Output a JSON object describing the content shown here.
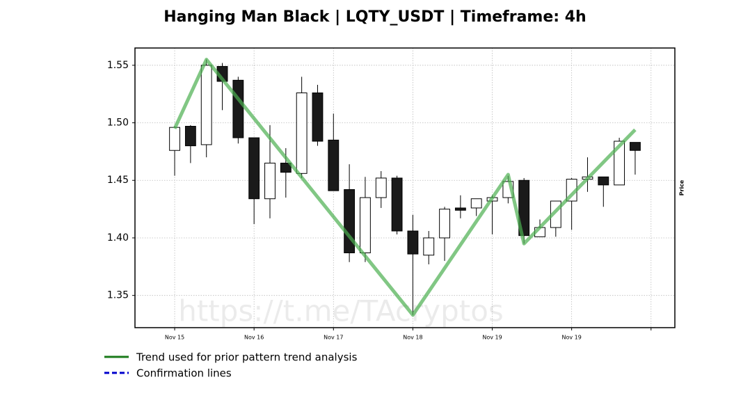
{
  "chart_data": {
    "type": "candlestick",
    "title": "Hanging Man Black | LQTY_USDT | Timeframe: 4h",
    "ylabel": "Price",
    "watermark": "https://t.me/TAcryptos",
    "up_color": "#ffffff",
    "down_color": "#1a1a1a",
    "open": [
      1.476,
      1.497,
      1.481,
      1.549,
      1.537,
      1.487,
      1.434,
      1.465,
      1.456,
      1.526,
      1.485,
      1.442,
      1.387,
      1.435,
      1.452,
      1.406,
      1.385,
      1.4,
      1.426,
      1.426,
      1.432,
      1.435,
      1.45,
      1.401,
      1.409,
      1.432,
      1.451,
      1.453,
      1.446,
      1.483
    ],
    "high": [
      1.497,
      1.498,
      1.555,
      1.552,
      1.54,
      1.487,
      1.498,
      1.478,
      1.54,
      1.533,
      1.508,
      1.464,
      1.453,
      1.458,
      1.454,
      1.42,
      1.406,
      1.427,
      1.437,
      1.434,
      1.437,
      1.454,
      1.452,
      1.416,
      1.432,
      1.452,
      1.47,
      1.453,
      1.487,
      1.483
    ],
    "low": [
      1.454,
      1.465,
      1.47,
      1.511,
      1.482,
      1.412,
      1.417,
      1.435,
      1.452,
      1.48,
      1.441,
      1.379,
      1.379,
      1.426,
      1.403,
      1.333,
      1.377,
      1.38,
      1.417,
      1.419,
      1.403,
      1.43,
      1.395,
      1.401,
      1.401,
      1.407,
      1.44,
      1.427,
      1.446,
      1.455
    ],
    "close": [
      1.496,
      1.48,
      1.55,
      1.536,
      1.487,
      1.434,
      1.465,
      1.457,
      1.526,
      1.484,
      1.441,
      1.387,
      1.435,
      1.452,
      1.406,
      1.386,
      1.4,
      1.425,
      1.424,
      1.434,
      1.435,
      1.449,
      1.402,
      1.409,
      1.432,
      1.451,
      1.453,
      1.446,
      1.484,
      1.476
    ],
    "trend": {
      "name": "Trend used for prior pattern trend analysis",
      "color": "#4caf50",
      "x": [
        0,
        2,
        15,
        21,
        22,
        29
      ],
      "values": [
        1.495,
        1.555,
        1.333,
        1.455,
        1.395,
        1.494
      ]
    },
    "confirmation": {
      "name": "Confirmation lines",
      "color": "#0000cc"
    },
    "xlim": [
      -2.5,
      31.5
    ],
    "ylim": [
      1.322,
      1.565
    ],
    "xticks": [
      {
        "value": 0,
        "label": "Nov 15"
      },
      {
        "value": 5,
        "label": "Nov 16"
      },
      {
        "value": 10,
        "label": "Nov 17"
      },
      {
        "value": 15,
        "label": "Nov 18"
      },
      {
        "value": 20,
        "label": "Nov 19"
      },
      {
        "value": 25,
        "label": "Nov 19"
      },
      {
        "value": 30,
        "label": null
      }
    ],
    "yticks": [
      {
        "value": 1.35,
        "label": "1.35"
      },
      {
        "value": 1.4,
        "label": "1.40"
      },
      {
        "value": 1.45,
        "label": "1.45"
      },
      {
        "value": 1.5,
        "label": "1.50"
      },
      {
        "value": 1.55,
        "label": "1.55"
      }
    ],
    "grid": true
  }
}
